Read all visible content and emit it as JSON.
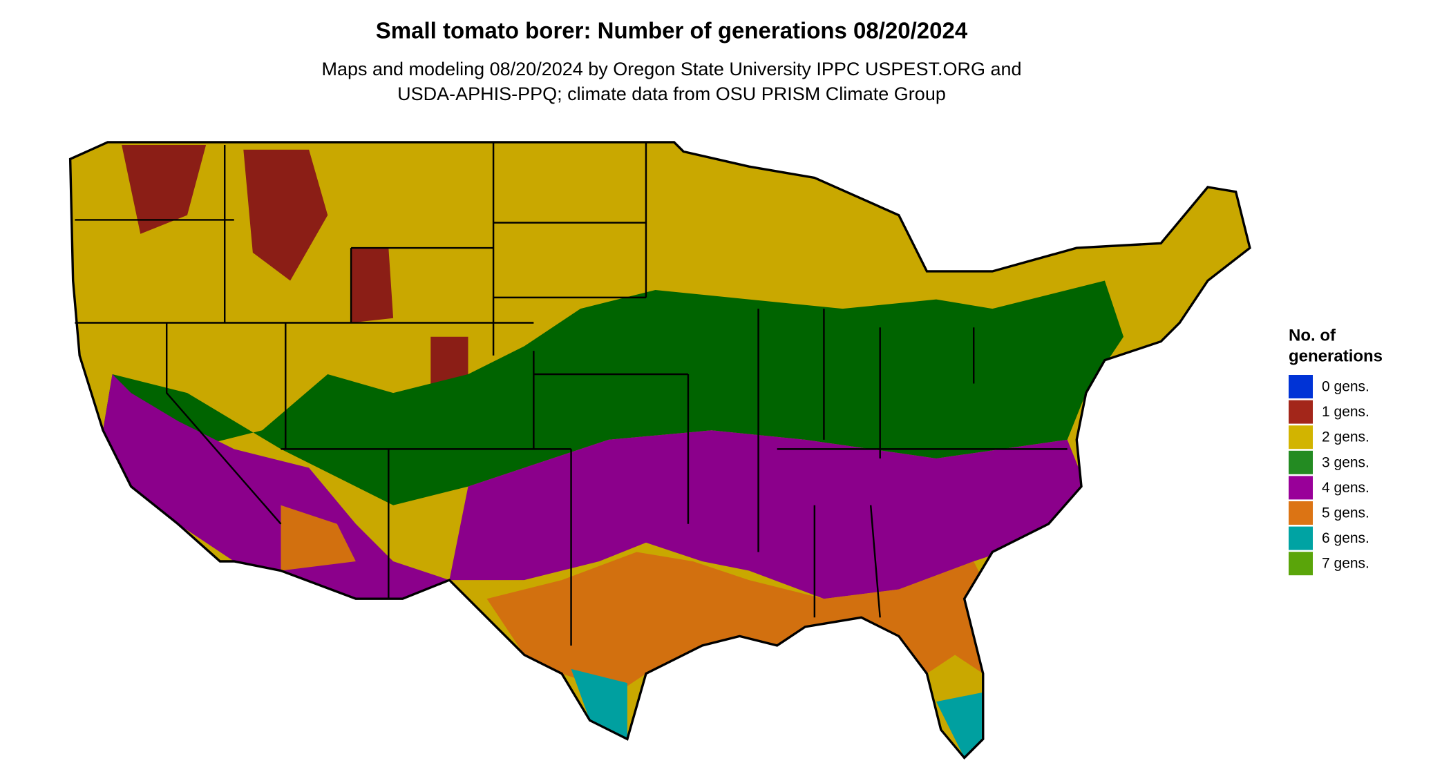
{
  "header": {
    "title": "Small tomato borer: Number of generations 08/20/2024",
    "subtitle_lines": [
      "Maps and modeling 08/20/2024 by Oregon State University IPPC USPEST.ORG and",
      "USDA-APHIS-PPQ; climate data from OSU PRISM Climate Group"
    ]
  },
  "legend": {
    "title_lines": [
      "No. of",
      "generations"
    ],
    "items": [
      {
        "label": "0 gens.",
        "color": "#0033d6"
      },
      {
        "label": "1 gens.",
        "color": "#a3261a"
      },
      {
        "label": "2 gens.",
        "color": "#d2b400"
      },
      {
        "label": "3 gens.",
        "color": "#238b22"
      },
      {
        "label": "4 gens.",
        "color": "#990099"
      },
      {
        "label": "5 gens.",
        "color": "#dc7414"
      },
      {
        "label": "6 gens.",
        "color": "#00a3a3"
      },
      {
        "label": "7 gens.",
        "color": "#5aa50a"
      }
    ]
  }
}
